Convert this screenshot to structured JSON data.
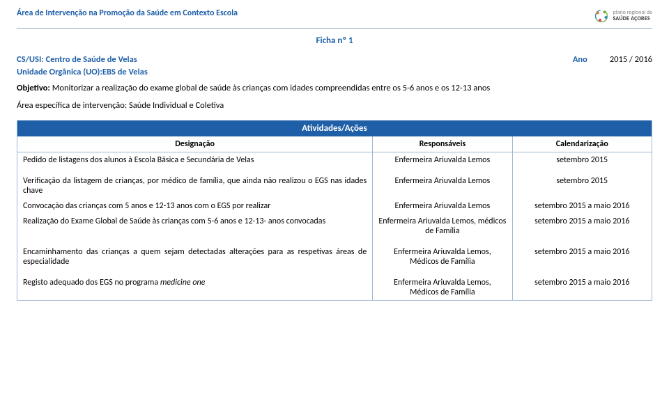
{
  "header": {
    "area_title": "Área de Intervenção na Promoção da Saúde em Contexto Escola",
    "logo_line1": "plano regional de",
    "logo_line2": "SAÚDE AÇORES"
  },
  "ficha": "Ficha nº 1",
  "cs": {
    "label": "CS/USI:",
    "value": "Centro de Saúde de Velas"
  },
  "ano": {
    "label": "Ano",
    "value": "2015 / 2016"
  },
  "uo": {
    "label": "Unidade Orgânica (UO):",
    "value": "EBS de Velas"
  },
  "objetivo": {
    "label": "Objetivo:",
    "text": "Monitorizar a realização do exame global de saúde às crianças com idades compreendidas entre os 5-6 anos e os 12-13 anos"
  },
  "area_esp": {
    "label": "Área específica de intervenção:",
    "text": "Saúde Individual e Coletiva"
  },
  "table": {
    "band": "Atividades/Ações",
    "cols": {
      "c1": "Designação",
      "c2": "Responsáveis",
      "c3": "Calendarização"
    },
    "rows": [
      {
        "d": "Pedido de listagens dos alunos à Escola Básica e Secundária de Velas",
        "r": "Enfermeira Ariuvalda Lemos",
        "c": "setembro 2015"
      },
      {
        "spacer": true
      },
      {
        "d": "Verificação da listagem de crianças, por médico de família, que ainda não realizou o EGS nas idades chave",
        "r": "Enfermeira Ariuvalda Lemos",
        "c": "setembro 2015"
      },
      {
        "d": "Convocação das crianças com 5 anos e 12-13 anos com o EGS por realizar",
        "r": "Enfermeira Ariuvalda Lemos",
        "c": "setembro 2015 a maio 2016"
      },
      {
        "d": "Realização do Exame Global de Saúde às crianças com 5-6 anos e 12-13- anos convocadas",
        "r": "Enfermeira Ariuvalda Lemos, médicos de Família",
        "c": "setembro 2015 a maio 2016"
      },
      {
        "spacer": true
      },
      {
        "d": "Encaminhamento das crianças a quem sejam detectadas alterações para as respetivas áreas de especialidade",
        "r": "Enfermeira Ariuvalda Lemos, Médicos de Família",
        "c": "setembro 2015 a maio 2016"
      },
      {
        "spacer": true
      },
      {
        "d_html": "Registo adequado dos EGS no programa <span class=\"italic\">medicine one</span>",
        "r": "Enfermeira Ariuvalda Lemos, Médicos de Família",
        "c": "setembro 2015 a maio 2016"
      }
    ]
  },
  "colors": {
    "brand_blue": "#1f5fa8",
    "border_blue": "#9fb7d4"
  }
}
